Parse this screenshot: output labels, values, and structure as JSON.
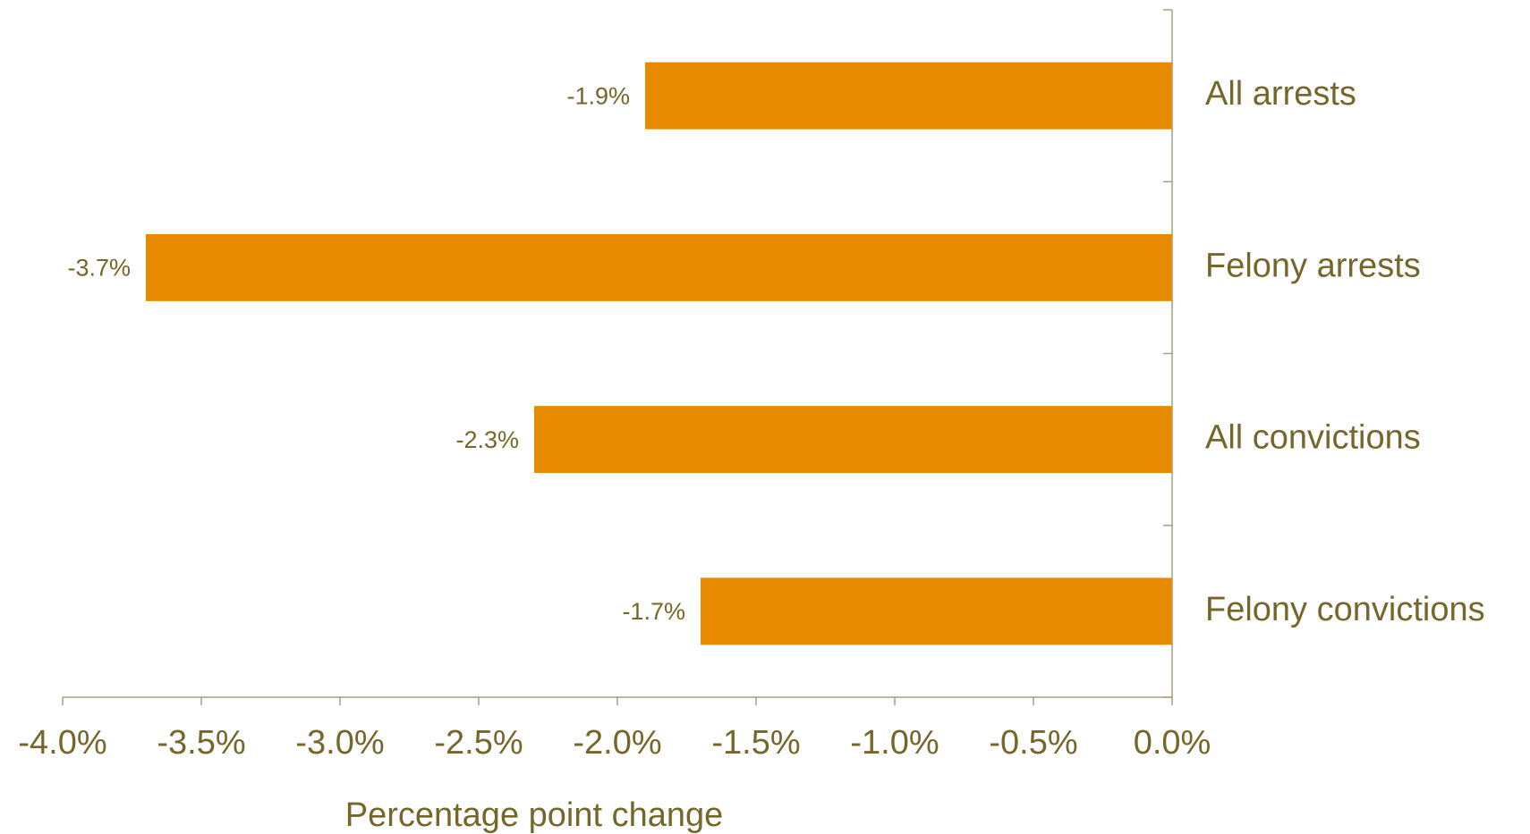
{
  "chart_data": {
    "type": "bar",
    "orientation": "horizontal",
    "x_label": "Percentage point change",
    "categories": [
      "All arrests",
      "Felony arrests",
      "All convictions",
      "Felony convictions"
    ],
    "values": [
      -1.9,
      -3.7,
      -2.3,
      -1.7
    ],
    "value_labels": [
      "-1.9%",
      "-3.7%",
      "-2.3%",
      "-1.7%"
    ],
    "color": "#e88a00",
    "xlim": [
      -4,
      0
    ],
    "xticks": [
      {
        "value": -4,
        "label": "-4.0%"
      },
      {
        "value": -3.5,
        "label": "-3.5%"
      },
      {
        "value": -3,
        "label": "-3.0%"
      },
      {
        "value": -2.5,
        "label": "-2.5%"
      },
      {
        "value": -2,
        "label": "-2.0%"
      },
      {
        "value": -1.5,
        "label": "-1.5%"
      },
      {
        "value": -1,
        "label": "-1.0%"
      },
      {
        "value": -0.5,
        "label": "-0.5%"
      },
      {
        "value": 0,
        "label": "0.0%"
      }
    ],
    "grid": false
  }
}
